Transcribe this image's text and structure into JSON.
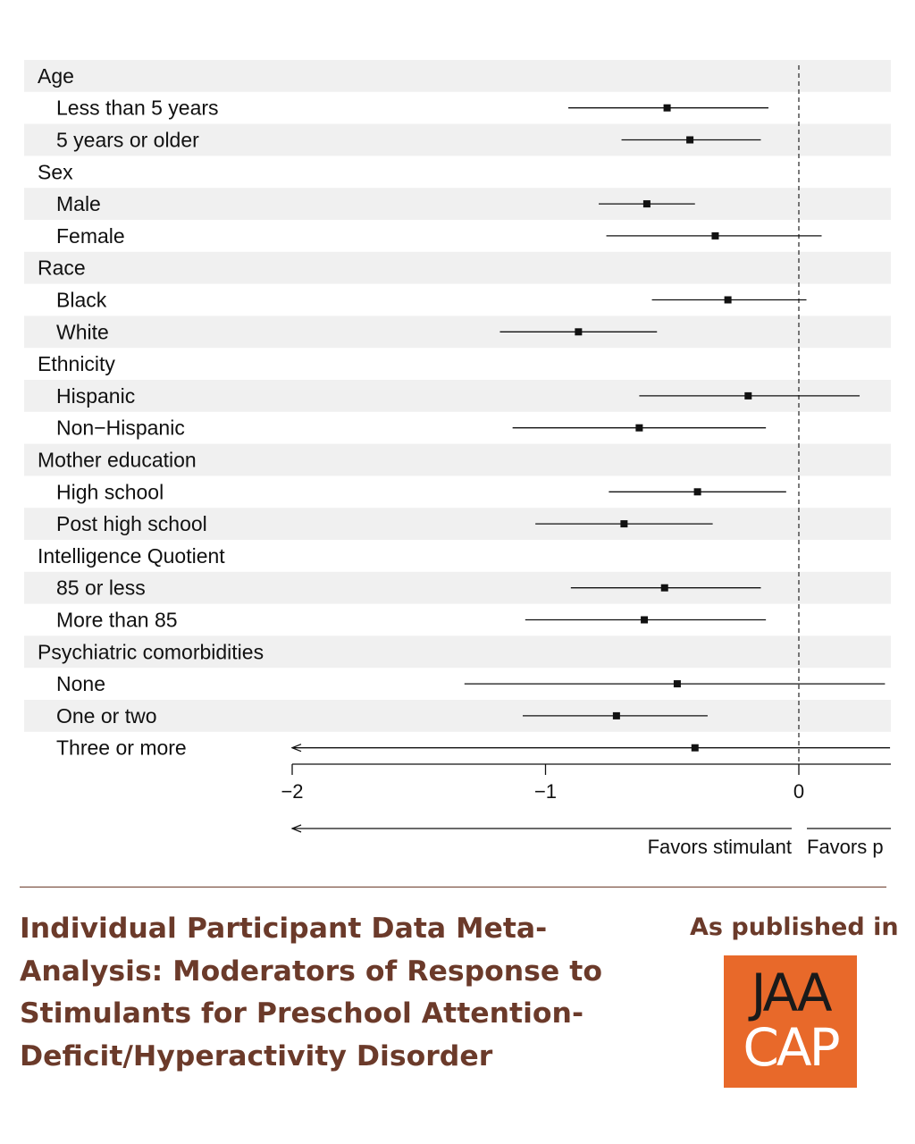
{
  "chart_data": {
    "type": "forest",
    "title": "",
    "xlabel": "",
    "xlim": [
      -2,
      0.36
    ],
    "xticks": [
      -2,
      -1,
      0
    ],
    "xtick_labels": [
      "−2",
      "−1",
      "0"
    ],
    "reference_line": 0,
    "direction_labels": {
      "left": "Favors stimulant",
      "right": "Favors p"
    },
    "rows": [
      {
        "label": "Age",
        "header": true
      },
      {
        "label": "Less than 5 years",
        "est": -0.52,
        "lo": -0.91,
        "hi": -0.12
      },
      {
        "label": "5 years or older",
        "est": -0.43,
        "lo": -0.7,
        "hi": -0.15
      },
      {
        "label": "Sex",
        "header": true
      },
      {
        "label": "Male",
        "est": -0.6,
        "lo": -0.79,
        "hi": -0.41
      },
      {
        "label": "Female",
        "est": -0.33,
        "lo": -0.76,
        "hi": 0.09
      },
      {
        "label": "Race",
        "header": true
      },
      {
        "label": "Black",
        "est": -0.28,
        "lo": -0.58,
        "hi": 0.03
      },
      {
        "label": "White",
        "est": -0.87,
        "lo": -1.18,
        "hi": -0.56
      },
      {
        "label": "Ethnicity",
        "header": true
      },
      {
        "label": "Hispanic",
        "est": -0.2,
        "lo": -0.63,
        "hi": 0.24
      },
      {
        "label": "Non−Hispanic",
        "est": -0.63,
        "lo": -1.13,
        "hi": -0.13
      },
      {
        "label": "Mother education",
        "header": true
      },
      {
        "label": "High school",
        "est": -0.4,
        "lo": -0.75,
        "hi": -0.05
      },
      {
        "label": "Post high school",
        "est": -0.69,
        "lo": -1.04,
        "hi": -0.34
      },
      {
        "label": "Intelligence Quotient",
        "header": true
      },
      {
        "label": "85 or less",
        "est": -0.53,
        "lo": -0.9,
        "hi": -0.15
      },
      {
        "label": "More than 85",
        "est": -0.61,
        "lo": -1.08,
        "hi": -0.13
      },
      {
        "label": "Psychiatric comorbidities",
        "header": true
      },
      {
        "label": "None",
        "est": -0.48,
        "lo": -1.32,
        "hi": 0.34
      },
      {
        "label": "One or two",
        "est": -0.72,
        "lo": -1.09,
        "hi": -0.36
      },
      {
        "label": "Three or more",
        "est": -0.41,
        "lo": -2.0,
        "hi": 0.36,
        "lo_arrow": true
      }
    ]
  },
  "footer": {
    "title": "Individual Participant Data Meta-Analysis: Moderators of Response to Stimulants for Preschool Attention-Deficit/Hyperactivity Disorder",
    "published_label": "As published in",
    "logo_line1": "JAA",
    "logo_line2": "CAP",
    "title_color": "#6b3a2a",
    "logo_bg": "#e8692a"
  }
}
